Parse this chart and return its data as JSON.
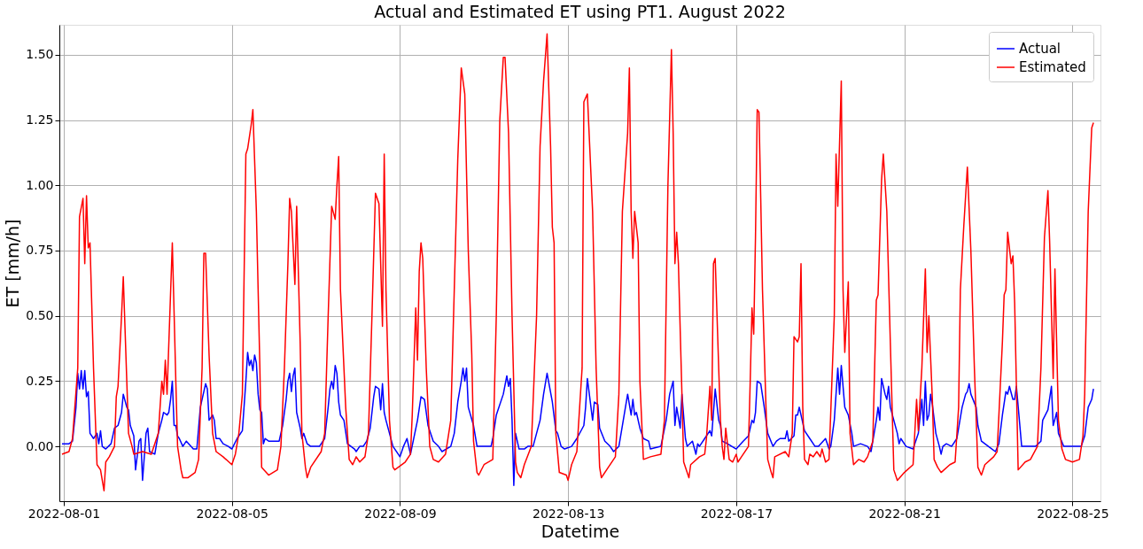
{
  "chart_data": {
    "type": "line",
    "title": "Actual and Estimated ET using PT1. August 2022",
    "xlabel": "Datetime",
    "ylabel": "ET [mm/h]",
    "xlim": [
      "2022-07-31T21:30",
      "2022-08-25T16:00"
    ],
    "xticks": [
      {
        "value": "2022-08-01",
        "label": "2022-08-01"
      },
      {
        "value": "2022-08-05",
        "label": "2022-08-05"
      },
      {
        "value": "2022-08-09",
        "label": "2022-08-09"
      },
      {
        "value": "2022-08-13",
        "label": "2022-08-13"
      },
      {
        "value": "2022-08-17",
        "label": "2022-08-17"
      },
      {
        "value": "2022-08-21",
        "label": "2022-08-21"
      },
      {
        "value": "2022-08-25",
        "label": "2022-08-25"
      }
    ],
    "ylim": [
      -0.21,
      1.615
    ],
    "yticks": [
      {
        "value": 0,
        "label": "0.00"
      },
      {
        "value": 0.25,
        "label": "0.25"
      },
      {
        "value": 0.5,
        "label": "0.50"
      },
      {
        "value": 0.75,
        "label": "0.75"
      },
      {
        "value": 1,
        "label": "1.00"
      },
      {
        "value": 1.25,
        "label": "1.25"
      },
      {
        "value": 1.5,
        "label": "1.50"
      }
    ],
    "grid": true,
    "legend": "top right",
    "series": [
      {
        "name": "Actual",
        "color": "#0000ff",
        "x": [
          "2022-07-31T23:00",
          "2022-08-01T03:00",
          "2022-08-01T05:00",
          "2022-08-01T07:00",
          "2022-08-01T08:00",
          "2022-08-01T09:00",
          "2022-08-01T10:00",
          "2022-08-01T11:00",
          "2022-08-01T12:00",
          "2022-08-01T13:00",
          "2022-08-01T14:00",
          "2022-08-01T15:00",
          "2022-08-01T17:00",
          "2022-08-01T19:00",
          "2022-08-01T20:00",
          "2022-08-01T21:00",
          "2022-08-01T22:00",
          "2022-08-02T00:00",
          "2022-08-02T03:00",
          "2022-08-02T05:00",
          "2022-08-02T07:00",
          "2022-08-02T09:00",
          "2022-08-02T10:00",
          "2022-08-02T12:00",
          "2022-08-02T13:00",
          "2022-08-02T14:00",
          "2022-08-02T16:00",
          "2022-08-02T17:00",
          "2022-08-02T19:00",
          "2022-08-02T20:00",
          "2022-08-02T21:00",
          "2022-08-02T23:00",
          "2022-08-03T00:00",
          "2022-08-03T01:00",
          "2022-08-03T04:00",
          "2022-08-03T06:00",
          "2022-08-03T08:00",
          "2022-08-03T09:00",
          "2022-08-03T11:00",
          "2022-08-03T12:00",
          "2022-08-03T13:00",
          "2022-08-03T14:00",
          "2022-08-03T15:00",
          "2022-08-03T16:00",
          "2022-08-03T17:00",
          "2022-08-03T18:00",
          "2022-08-03T20:00",
          "2022-08-03T22:00",
          "2022-08-04T02:00",
          "2022-08-04T04:00",
          "2022-08-04T06:00",
          "2022-08-04T09:00",
          "2022-08-04T10:00",
          "2022-08-04T11:00",
          "2022-08-04T13:00",
          "2022-08-04T14:00",
          "2022-08-04T15:00",
          "2022-08-04T17:00",
          "2022-08-04T19:00",
          "2022-08-04T22:00",
          "2022-08-05T00:00",
          "2022-08-05T03:00",
          "2022-08-05T06:00",
          "2022-08-05T08:00",
          "2022-08-05T09:00",
          "2022-08-05T10:00",
          "2022-08-05T11:00",
          "2022-08-05T12:00",
          "2022-08-05T13:00",
          "2022-08-05T14:00",
          "2022-08-05T15:00",
          "2022-08-05T16:00",
          "2022-08-05T17:00",
          "2022-08-05T18:00",
          "2022-08-05T19:00",
          "2022-08-05T21:00",
          "2022-08-06T01:00",
          "2022-08-06T03:00",
          "2022-08-06T05:00",
          "2022-08-06T07:00",
          "2022-08-06T08:00",
          "2022-08-06T09:00",
          "2022-08-06T10:00",
          "2022-08-06T11:00",
          "2022-08-06T12:00",
          "2022-08-06T13:00",
          "2022-08-06T15:00",
          "2022-08-06T16:00",
          "2022-08-06T17:00",
          "2022-08-06T19:00",
          "2022-08-06T21:00",
          "2022-08-07T02:00",
          "2022-08-07T05:00",
          "2022-08-07T07:00",
          "2022-08-07T08:00",
          "2022-08-07T09:00",
          "2022-08-07T10:00",
          "2022-08-07T11:00",
          "2022-08-07T12:00",
          "2022-08-07T13:00",
          "2022-08-07T14:00",
          "2022-08-07T16:00",
          "2022-08-07T18:00",
          "2022-08-07T20:00",
          "2022-08-07T22:00",
          "2022-08-07T23:00",
          "2022-08-08T01:00",
          "2022-08-08T03:00",
          "2022-08-08T05:00",
          "2022-08-08T07:00",
          "2022-08-08T09:00",
          "2022-08-08T10:00",
          "2022-08-08T12:00",
          "2022-08-08T13:00",
          "2022-08-08T14:00",
          "2022-08-08T15:00",
          "2022-08-08T16:00",
          "2022-08-08T18:00",
          "2022-08-08T20:00",
          "2022-08-08T23:00",
          "2022-08-09T00:00",
          "2022-08-09T02:00",
          "2022-08-09T04:00",
          "2022-08-09T06:00",
          "2022-08-09T10:00",
          "2022-08-09T12:00",
          "2022-08-09T14:00",
          "2022-08-09T16:00",
          "2022-08-09T19:00",
          "2022-08-09T22:00",
          "2022-08-10T00:00",
          "2022-08-10T05:00",
          "2022-08-10T07:00",
          "2022-08-10T09:00",
          "2022-08-10T11:00",
          "2022-08-10T12:00",
          "2022-08-10T13:00",
          "2022-08-10T14:00",
          "2022-08-10T15:00",
          "2022-08-10T18:00",
          "2022-08-10T20:00",
          "2022-08-11T04:00",
          "2022-08-11T05:00",
          "2022-08-11T07:00",
          "2022-08-11T11:00",
          "2022-08-11T13:00",
          "2022-08-11T14:00",
          "2022-08-11T15:00",
          "2022-08-11T16:00",
          "2022-08-11T17:00",
          "2022-08-11T18:00",
          "2022-08-11T20:00",
          "2022-08-11T23:00",
          "2022-08-12T01:00",
          "2022-08-12T04:00",
          "2022-08-12T08:00",
          "2022-08-12T10:00",
          "2022-08-12T12:00",
          "2022-08-12T15:00",
          "2022-08-12T17:00",
          "2022-08-12T18:00",
          "2022-08-12T20:00",
          "2022-08-12T22:00",
          "2022-08-13T02:00",
          "2022-08-13T05:00",
          "2022-08-13T09:00",
          "2022-08-13T10:00",
          "2022-08-13T11:00",
          "2022-08-13T14:00",
          "2022-08-13T15:00",
          "2022-08-13T17:00",
          "2022-08-13T18:00",
          "2022-08-13T21:00",
          "2022-08-14T00:00",
          "2022-08-14T02:00",
          "2022-08-14T05:00",
          "2022-08-14T07:00",
          "2022-08-14T09:00",
          "2022-08-14T10:00",
          "2022-08-14T12:00",
          "2022-08-14T13:00",
          "2022-08-14T14:00",
          "2022-08-14T15:00",
          "2022-08-14T17:00",
          "2022-08-14T19:00",
          "2022-08-14T22:00",
          "2022-08-14T23:00",
          "2022-08-15T05:00",
          "2022-08-15T08:00",
          "2022-08-15T10:00",
          "2022-08-15T12:00",
          "2022-08-15T13:00",
          "2022-08-15T14:00",
          "2022-08-15T16:00",
          "2022-08-15T17:00",
          "2022-08-15T19:00",
          "2022-08-15T20:00",
          "2022-08-15T23:00",
          "2022-08-16T01:00",
          "2022-08-16T02:00",
          "2022-08-16T03:00",
          "2022-08-16T06:00",
          "2022-08-16T09:00",
          "2022-08-16T10:00",
          "2022-08-16T12:00",
          "2022-08-16T14:00",
          "2022-08-16T15:00",
          "2022-08-16T16:00",
          "2022-08-16T19:00",
          "2022-08-17T00:00",
          "2022-08-17T04:00",
          "2022-08-17T07:00",
          "2022-08-17T09:00",
          "2022-08-17T10:00",
          "2022-08-17T11:00",
          "2022-08-17T12:00",
          "2022-08-17T14:00",
          "2022-08-17T16:00",
          "2022-08-17T18:00",
          "2022-08-17T21:00",
          "2022-08-17T23:00",
          "2022-08-18T01:00",
          "2022-08-18T04:00",
          "2022-08-18T05:00",
          "2022-08-18T06:00",
          "2022-08-18T09:00",
          "2022-08-18T10:00",
          "2022-08-18T11:00",
          "2022-08-18T12:00",
          "2022-08-18T15:00",
          "2022-08-18T18:00",
          "2022-08-18T21:00",
          "2022-08-18T23:00",
          "2022-08-19T03:00",
          "2022-08-19T05:00",
          "2022-08-19T06:00",
          "2022-08-19T08:00",
          "2022-08-19T10:00",
          "2022-08-19T11:00",
          "2022-08-19T12:00",
          "2022-08-19T14:00",
          "2022-08-19T16:00",
          "2022-08-19T18:00",
          "2022-08-19T19:00",
          "2022-08-19T23:00",
          "2022-08-20T03:00",
          "2022-08-20T05:00",
          "2022-08-20T08:00",
          "2022-08-20T09:00",
          "2022-08-20T10:00",
          "2022-08-20T11:00",
          "2022-08-20T13:00",
          "2022-08-20T14:00",
          "2022-08-20T15:00",
          "2022-08-20T16:00",
          "2022-08-20T20:00",
          "2022-08-20T21:00",
          "2022-08-20T22:00",
          "2022-08-21T01:00",
          "2022-08-21T05:00",
          "2022-08-21T08:00",
          "2022-08-21T10:00",
          "2022-08-21T11:00",
          "2022-08-21T12:00",
          "2022-08-21T13:00",
          "2022-08-21T14:00",
          "2022-08-21T15:00",
          "2022-08-21T16:00",
          "2022-08-21T18:00",
          "2022-08-21T20:00",
          "2022-08-21T21:00",
          "2022-08-21T22:00",
          "2022-08-22T00:00",
          "2022-08-22T03:00",
          "2022-08-22T06:00",
          "2022-08-22T09:00",
          "2022-08-22T11:00",
          "2022-08-22T12:00",
          "2022-08-22T13:00",
          "2022-08-22T14:00",
          "2022-08-22T17:00",
          "2022-08-22T18:00",
          "2022-08-22T20:00",
          "2022-08-23T00:00",
          "2022-08-23T04:00",
          "2022-08-23T06:00",
          "2022-08-23T08:00",
          "2022-08-23T10:00",
          "2022-08-23T11:00",
          "2022-08-23T12:00",
          "2022-08-23T14:00",
          "2022-08-23T15:00",
          "2022-08-23T16:00",
          "2022-08-23T19:00",
          "2022-08-24T00:00",
          "2022-08-24T03:00",
          "2022-08-24T06:00",
          "2022-08-24T07:00",
          "2022-08-24T10:00",
          "2022-08-24T12:00",
          "2022-08-24T13:00",
          "2022-08-24T15:00",
          "2022-08-24T16:00",
          "2022-08-24T19:00",
          "2022-08-25T02:00",
          "2022-08-25T05:00",
          "2022-08-25T07:00",
          "2022-08-25T09:00",
          "2022-08-25T11:00",
          "2022-08-25T12:00"
        ],
        "values": [
          0.01,
          0.01,
          0.02,
          0.15,
          0.28,
          0.22,
          0.29,
          0.22,
          0.29,
          0.19,
          0.21,
          0.05,
          0.03,
          0.05,
          0.01,
          0.06,
          0.0,
          -0.01,
          0.01,
          0.07,
          0.08,
          0.13,
          0.2,
          0.15,
          0.14,
          0.08,
          0.04,
          -0.09,
          0.02,
          0.03,
          -0.13,
          0.05,
          0.07,
          -0.02,
          -0.03,
          0.05,
          0.1,
          0.13,
          0.12,
          0.13,
          0.18,
          0.25,
          0.08,
          0.08,
          0.04,
          0.03,
          0.0,
          0.02,
          -0.01,
          -0.01,
          0.15,
          0.24,
          0.22,
          0.1,
          0.12,
          0.1,
          0.03,
          0.03,
          0.01,
          0.0,
          -0.01,
          0.03,
          0.06,
          0.25,
          0.36,
          0.31,
          0.33,
          0.29,
          0.35,
          0.32,
          0.2,
          0.14,
          0.13,
          0.01,
          0.03,
          0.02,
          0.02,
          0.02,
          0.08,
          0.18,
          0.25,
          0.28,
          0.21,
          0.27,
          0.3,
          0.13,
          0.07,
          0.03,
          0.05,
          0.01,
          0.0,
          0.0,
          0.03,
          0.15,
          0.22,
          0.25,
          0.22,
          0.31,
          0.28,
          0.17,
          0.12,
          0.1,
          0.01,
          0.0,
          -0.01,
          -0.02,
          0.0,
          0.0,
          0.02,
          0.07,
          0.19,
          0.23,
          0.22,
          0.14,
          0.24,
          0.13,
          0.1,
          0.05,
          0.0,
          -0.03,
          -0.04,
          0.0,
          0.03,
          -0.03,
          0.1,
          0.19,
          0.18,
          0.08,
          0.02,
          0.0,
          -0.02,
          0.0,
          0.05,
          0.17,
          0.25,
          0.3,
          0.25,
          0.3,
          0.15,
          0.08,
          0.0,
          0.0,
          0.03,
          0.12,
          0.2,
          0.27,
          0.23,
          0.26,
          0.1,
          -0.15,
          0.05,
          -0.01,
          -0.01,
          0.0,
          0.0,
          0.1,
          0.2,
          0.28,
          0.17,
          0.06,
          0.05,
          0.0,
          -0.01,
          0.0,
          0.03,
          0.08,
          0.15,
          0.26,
          0.1,
          0.17,
          0.16,
          0.07,
          0.02,
          0.0,
          -0.02,
          0.0,
          0.08,
          0.16,
          0.2,
          0.12,
          0.18,
          0.12,
          0.13,
          0.07,
          0.03,
          0.02,
          -0.01,
          0.0,
          0.1,
          0.2,
          0.25,
          0.08,
          0.15,
          0.07,
          0.2,
          0.03,
          0.0,
          0.02,
          -0.03,
          0.01,
          0.0,
          0.03,
          0.06,
          0.04,
          0.22,
          0.1,
          0.08,
          0.02,
          0.01,
          -0.01,
          0.02,
          0.04,
          0.1,
          0.09,
          0.13,
          0.25,
          0.24,
          0.15,
          0.05,
          0.0,
          0.02,
          0.03,
          0.03,
          0.06,
          0.02,
          0.04,
          0.12,
          0.12,
          0.15,
          0.06,
          0.03,
          0.0,
          0.0,
          0.03,
          -0.01,
          0.0,
          0.1,
          0.3,
          0.2,
          0.31,
          0.15,
          0.12,
          0.05,
          0.0,
          0.01,
          0.0,
          -0.02,
          0.1,
          0.15,
          0.1,
          0.26,
          0.2,
          0.18,
          0.23,
          0.15,
          0.05,
          0.01,
          0.03,
          0.0,
          -0.01,
          0.05,
          0.18,
          0.08,
          0.25,
          0.1,
          0.12,
          0.2,
          0.16,
          0.05,
          0.0,
          -0.03,
          0.0,
          0.01,
          0.0,
          0.03,
          0.15,
          0.2,
          0.21,
          0.24,
          0.2,
          0.15,
          0.08,
          0.02,
          0.0,
          -0.02,
          0.01,
          0.12,
          0.21,
          0.2,
          0.23,
          0.18,
          0.18,
          0.23,
          0.0,
          0.0,
          0.0,
          0.02,
          0.1,
          0.14,
          0.23,
          0.08,
          0.13,
          0.05,
          0.0,
          0.0,
          0.0,
          0.04,
          0.15,
          0.18,
          0.22
        ]
      },
      {
        "name": "Estimated",
        "color": "#ff0000",
        "x": [
          "2022-07-31T23:00",
          "2022-08-01T03:00",
          "2022-08-01T05:00",
          "2022-08-01T08:00",
          "2022-08-01T09:00",
          "2022-08-01T11:00",
          "2022-08-01T12:00",
          "2022-08-01T13:00",
          "2022-08-01T14:00",
          "2022-08-01T15:00",
          "2022-08-01T17:00",
          "2022-08-01T19:00",
          "2022-08-01T21:00",
          "2022-08-01T23:00",
          "2022-08-02T00:00",
          "2022-08-02T02:00",
          "2022-08-02T05:00",
          "2022-08-02T06:00",
          "2022-08-02T07:00",
          "2022-08-02T09:00",
          "2022-08-02T10:00",
          "2022-08-02T12:00",
          "2022-08-02T13:00",
          "2022-08-02T15:00",
          "2022-08-02T16:00",
          "2022-08-02T21:00",
          "2022-08-03T02:00",
          "2022-08-03T06:00",
          "2022-08-03T08:00",
          "2022-08-03T09:00",
          "2022-08-03T10:00",
          "2022-08-03T11:00",
          "2022-08-03T14:00",
          "2022-08-03T16:00",
          "2022-08-03T17:00",
          "2022-08-03T19:00",
          "2022-08-03T20:00",
          "2022-08-03T23:00",
          "2022-08-04T03:00",
          "2022-08-04T05:00",
          "2022-08-04T07:00",
          "2022-08-04T08:00",
          "2022-08-04T09:00",
          "2022-08-04T11:00",
          "2022-08-04T13:00",
          "2022-08-04T15:00",
          "2022-08-04T19:00",
          "2022-08-05T00:00",
          "2022-08-05T02:00",
          "2022-08-05T04:00",
          "2022-08-05T06:00",
          "2022-08-05T08:00",
          "2022-08-05T09:00",
          "2022-08-05T11:00",
          "2022-08-05T12:00",
          "2022-08-05T14:00",
          "2022-08-05T16:00",
          "2022-08-05T17:00",
          "2022-08-05T21:00",
          "2022-08-06T02:00",
          "2022-08-06T04:00",
          "2022-08-06T06:00",
          "2022-08-06T08:00",
          "2022-08-06T09:00",
          "2022-08-06T10:00",
          "2022-08-06T12:00",
          "2022-08-06T13:00",
          "2022-08-06T15:00",
          "2022-08-06T16:00",
          "2022-08-06T18:00",
          "2022-08-06T19:00",
          "2022-08-06T21:00",
          "2022-08-07T03:00",
          "2022-08-07T05:00",
          "2022-08-07T07:00",
          "2022-08-07T09:00",
          "2022-08-07T11:00",
          "2022-08-07T12:00",
          "2022-08-07T13:00",
          "2022-08-07T14:00",
          "2022-08-07T16:00",
          "2022-08-07T17:00",
          "2022-08-07T19:00",
          "2022-08-07T21:00",
          "2022-08-07T23:00",
          "2022-08-08T01:00",
          "2022-08-08T04:00",
          "2022-08-08T06:00",
          "2022-08-08T08:00",
          "2022-08-08T10:00",
          "2022-08-08T12:00",
          "2022-08-08T14:00",
          "2022-08-08T15:00",
          "2022-08-08T16:00",
          "2022-08-08T18:00",
          "2022-08-08T20:00",
          "2022-08-08T21:00",
          "2022-08-09T03:00",
          "2022-08-09T06:00",
          "2022-08-09T07:00",
          "2022-08-09T09:00",
          "2022-08-09T10:00",
          "2022-08-09T11:00",
          "2022-08-09T12:00",
          "2022-08-09T13:00",
          "2022-08-09T15:00",
          "2022-08-09T17:00",
          "2022-08-09T19:00",
          "2022-08-09T22:00",
          "2022-08-10T02:00",
          "2022-08-10T05:00",
          "2022-08-10T07:00",
          "2022-08-10T09:00",
          "2022-08-10T11:00",
          "2022-08-10T13:00",
          "2022-08-10T15:00",
          "2022-08-10T17:00",
          "2022-08-10T18:00",
          "2022-08-10T20:00",
          "2022-08-10T21:00",
          "2022-08-11T00:00",
          "2022-08-11T05:00",
          "2022-08-11T07:00",
          "2022-08-11T09:00",
          "2022-08-11T11:00",
          "2022-08-11T12:00",
          "2022-08-11T14:00",
          "2022-08-11T16:00",
          "2022-08-11T18:00",
          "2022-08-11T19:00",
          "2022-08-11T21:00",
          "2022-08-11T23:00",
          "2022-08-12T03:00",
          "2022-08-12T06:00",
          "2022-08-12T08:00",
          "2022-08-12T10:00",
          "2022-08-12T12:00",
          "2022-08-12T14:00",
          "2022-08-12T15:00",
          "2022-08-12T16:00",
          "2022-08-12T17:00",
          "2022-08-12T19:00",
          "2022-08-12T23:00",
          "2022-08-13T00:00",
          "2022-08-13T02:00",
          "2022-08-13T05:00",
          "2022-08-13T08:00",
          "2022-08-13T09:00",
          "2022-08-13T11:00",
          "2022-08-13T14:00",
          "2022-08-13T16:00",
          "2022-08-13T18:00",
          "2022-08-13T19:00",
          "2022-08-13T23:00",
          "2022-08-14T03:00",
          "2022-08-14T05:00",
          "2022-08-14T07:00",
          "2022-08-14T10:00",
          "2022-08-14T11:00",
          "2022-08-14T12:00",
          "2022-08-14T13:00",
          "2022-08-14T14:00",
          "2022-08-14T16:00",
          "2022-08-14T17:00",
          "2022-08-14T19:00",
          "2022-08-14T23:00",
          "2022-08-15T05:00",
          "2022-08-15T07:00",
          "2022-08-15T09:00",
          "2022-08-15T11:00",
          "2022-08-15T12:00",
          "2022-08-15T13:00",
          "2022-08-15T14:00",
          "2022-08-15T15:00",
          "2022-08-15T17:00",
          "2022-08-15T18:00",
          "2022-08-15T21:00",
          "2022-08-15T22:00",
          "2022-08-16T03:00",
          "2022-08-16T06:00",
          "2022-08-16T07:00",
          "2022-08-16T09:00",
          "2022-08-16T10:00",
          "2022-08-16T11:00",
          "2022-08-16T12:00",
          "2022-08-16T14:00",
          "2022-08-16T15:00",
          "2022-08-16T16:00",
          "2022-08-16T17:00",
          "2022-08-16T18:00",
          "2022-08-16T20:00",
          "2022-08-16T22:00",
          "2022-08-17T00:00",
          "2022-08-17T01:00",
          "2022-08-17T03:00",
          "2022-08-17T07:00",
          "2022-08-17T08:00",
          "2022-08-17T09:00",
          "2022-08-17T10:00",
          "2022-08-17T11:00",
          "2022-08-17T12:00",
          "2022-08-17T13:00",
          "2022-08-17T14:00",
          "2022-08-17T15:00",
          "2022-08-17T17:00",
          "2022-08-17T18:00",
          "2022-08-17T20:00",
          "2022-08-17T21:00",
          "2022-08-17T22:00",
          "2022-08-18T04:00",
          "2022-08-18T06:00",
          "2022-08-18T08:00",
          "2022-08-18T09:00",
          "2022-08-18T11:00",
          "2022-08-18T12:00",
          "2022-08-18T13:00",
          "2022-08-18T14:00",
          "2022-08-18T15:00",
          "2022-08-18T17:00",
          "2022-08-18T18:00",
          "2022-08-18T20:00",
          "2022-08-18T22:00",
          "2022-08-19T00:00",
          "2022-08-19T01:00",
          "2022-08-19T03:00",
          "2022-08-19T05:00",
          "2022-08-19T08:00",
          "2022-08-19T09:00",
          "2022-08-19T10:00",
          "2022-08-19T12:00",
          "2022-08-19T13:00",
          "2022-08-19T14:00",
          "2022-08-19T16:00",
          "2022-08-19T17:00",
          "2022-08-19T19:00",
          "2022-08-19T22:00",
          "2022-08-20T01:00",
          "2022-08-20T03:00",
          "2022-08-20T06:00",
          "2022-08-20T08:00",
          "2022-08-20T09:00",
          "2022-08-20T11:00",
          "2022-08-20T12:00",
          "2022-08-20T14:00",
          "2022-08-20T16:00",
          "2022-08-20T18:00",
          "2022-08-20T20:00",
          "2022-08-21T00:00",
          "2022-08-21T05:00",
          "2022-08-21T07:00",
          "2022-08-21T08:00",
          "2022-08-21T10:00",
          "2022-08-21T12:00",
          "2022-08-21T13:00",
          "2022-08-21T14:00",
          "2022-08-21T16:00",
          "2022-08-21T17:00",
          "2022-08-21T19:00",
          "2022-08-21T21:00",
          "2022-08-22T02:00",
          "2022-08-22T05:00",
          "2022-08-22T07:00",
          "2022-08-22T08:00",
          "2022-08-22T10:00",
          "2022-08-22T12:00",
          "2022-08-22T14:00",
          "2022-08-22T16:00",
          "2022-08-22T18:00",
          "2022-08-22T20:00",
          "2022-08-22T22:00",
          "2022-08-23T03:00",
          "2022-08-23T05:00",
          "2022-08-23T08:00",
          "2022-08-23T09:00",
          "2022-08-23T10:00",
          "2022-08-23T11:00",
          "2022-08-23T13:00",
          "2022-08-23T14:00",
          "2022-08-23T15:00",
          "2022-08-23T17:00",
          "2022-08-23T21:00",
          "2022-08-24T00:00",
          "2022-08-24T04:00",
          "2022-08-24T06:00",
          "2022-08-24T08:00",
          "2022-08-24T10:00",
          "2022-08-24T11:00",
          "2022-08-24T13:00",
          "2022-08-24T14:00",
          "2022-08-24T16:00",
          "2022-08-24T18:00",
          "2022-08-24T20:00",
          "2022-08-25T00:00",
          "2022-08-25T04:00",
          "2022-08-25T06:00",
          "2022-08-25T07:00",
          "2022-08-25T09:00",
          "2022-08-25T11:00",
          "2022-08-25T12:00"
        ],
        "values": [
          -0.03,
          -0.02,
          0.03,
          0.3,
          0.88,
          0.95,
          0.7,
          0.96,
          0.76,
          0.78,
          0.3,
          -0.07,
          -0.09,
          -0.17,
          -0.06,
          -0.04,
          0.0,
          0.19,
          0.23,
          0.5,
          0.65,
          0.25,
          0.05,
          0.0,
          -0.03,
          -0.02,
          -0.03,
          0.05,
          0.25,
          0.2,
          0.33,
          0.2,
          0.78,
          0.25,
          0.0,
          -0.09,
          -0.12,
          -0.12,
          -0.1,
          -0.05,
          0.3,
          0.74,
          0.74,
          0.35,
          0.05,
          -0.02,
          -0.04,
          -0.07,
          -0.03,
          0.05,
          0.2,
          1.12,
          1.14,
          1.23,
          1.29,
          0.9,
          0.3,
          -0.08,
          -0.11,
          -0.09,
          0.0,
          0.3,
          0.7,
          0.95,
          0.9,
          0.62,
          0.92,
          0.4,
          0.05,
          -0.08,
          -0.12,
          -0.08,
          -0.02,
          0.05,
          0.5,
          0.92,
          0.87,
          1.0,
          1.11,
          0.6,
          0.3,
          0.15,
          -0.05,
          -0.07,
          -0.04,
          -0.06,
          -0.04,
          0.05,
          0.5,
          0.97,
          0.93,
          0.46,
          1.12,
          0.6,
          0.1,
          -0.08,
          -0.09,
          -0.06,
          -0.03,
          0.12,
          0.53,
          0.33,
          0.67,
          0.78,
          0.72,
          0.3,
          0.0,
          -0.05,
          -0.06,
          -0.03,
          0.1,
          0.6,
          1.1,
          1.45,
          1.35,
          0.75,
          0.35,
          0.02,
          -0.1,
          -0.11,
          -0.07,
          -0.05,
          0.5,
          1.25,
          1.49,
          1.49,
          1.2,
          0.5,
          -0.06,
          -0.1,
          -0.12,
          -0.07,
          0.0,
          0.5,
          1.15,
          1.4,
          1.58,
          1.15,
          0.84,
          0.78,
          0.05,
          -0.1,
          -0.11,
          -0.13,
          -0.07,
          -0.02,
          0.3,
          1.32,
          1.35,
          0.9,
          0.3,
          -0.08,
          -0.12,
          -0.08,
          -0.04,
          0.2,
          0.9,
          1.2,
          1.45,
          0.9,
          0.72,
          0.9,
          0.78,
          0.25,
          -0.05,
          -0.04,
          -0.03,
          0.1,
          1.0,
          1.52,
          1.2,
          0.7,
          0.82,
          0.7,
          0.2,
          -0.06,
          -0.12,
          -0.07,
          -0.04,
          -0.03,
          0.03,
          0.23,
          0.1,
          0.7,
          0.72,
          0.3,
          0.1,
          0.0,
          -0.05,
          0.07,
          -0.05,
          -0.06,
          -0.03,
          -0.06,
          -0.04,
          0.0,
          0.25,
          0.53,
          0.43,
          0.8,
          1.29,
          1.28,
          0.95,
          0.6,
          0.15,
          -0.05,
          -0.1,
          -0.12,
          -0.04,
          -0.02,
          -0.04,
          0.05,
          0.42,
          0.4,
          0.42,
          0.7,
          0.15,
          -0.05,
          -0.07,
          -0.03,
          -0.04,
          -0.02,
          -0.04,
          -0.01,
          -0.06,
          -0.05,
          0.5,
          1.12,
          0.92,
          1.4,
          0.6,
          0.36,
          0.63,
          0.05,
          -0.07,
          -0.05,
          -0.06,
          -0.04,
          0.02,
          0.56,
          0.58,
          1.02,
          1.12,
          0.9,
          0.4,
          -0.09,
          -0.13,
          -0.1,
          -0.07,
          0.18,
          0.06,
          0.3,
          0.68,
          0.36,
          0.5,
          0.18,
          -0.05,
          -0.08,
          -0.1,
          -0.07,
          -0.06,
          0.15,
          0.6,
          0.85,
          1.07,
          0.75,
          0.3,
          -0.08,
          -0.11,
          -0.07,
          -0.04,
          -0.02,
          0.4,
          0.58,
          0.6,
          0.82,
          0.7,
          0.73,
          0.55,
          -0.09,
          -0.06,
          -0.05,
          0.0,
          0.3,
          0.8,
          0.98,
          0.78,
          0.26,
          0.68,
          0.1,
          -0.01,
          -0.05,
          -0.06,
          -0.05,
          0.04,
          0.2,
          0.9,
          1.22,
          1.24
        ]
      }
    ]
  }
}
